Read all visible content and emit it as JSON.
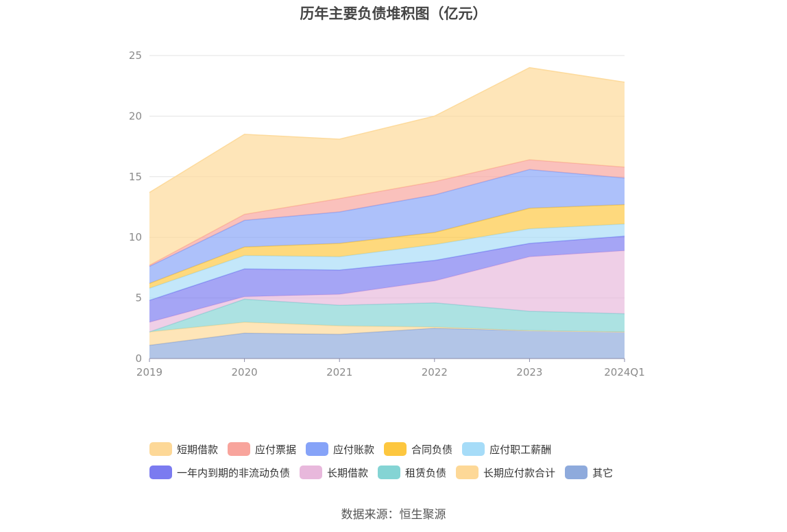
{
  "title": "历年主要负债堆积图（亿元）",
  "source": "数据来源：恒生聚源",
  "chart_data": {
    "type": "area",
    "stacked": true,
    "title": "历年主要负债堆积图（亿元）",
    "x": [
      "2019",
      "2020",
      "2021",
      "2022",
      "2023",
      "2024Q1"
    ],
    "ylim": [
      0,
      25
    ],
    "yticks": [
      0,
      5,
      10,
      15,
      20,
      25
    ],
    "grid": true,
    "legend_position": "bottom",
    "series": [
      {
        "name": "其它",
        "color": "#8eaadc",
        "values": [
          1.1,
          2.1,
          2.0,
          2.5,
          2.3,
          2.2
        ]
      },
      {
        "name": "长期应付款合计",
        "color": "#fdd897",
        "values": [
          1.1,
          0.9,
          0.7,
          0.1,
          0.0,
          0.0
        ]
      },
      {
        "name": "租赁负债",
        "color": "#84d4d4",
        "values": [
          0.0,
          1.9,
          1.7,
          2.0,
          1.6,
          1.5
        ]
      },
      {
        "name": "长期借款",
        "color": "#e8b8dc",
        "values": [
          0.8,
          0.2,
          0.9,
          1.8,
          4.5,
          5.2
        ]
      },
      {
        "name": "一年内到期的非流动负债",
        "color": "#7b7bf0",
        "values": [
          1.8,
          2.3,
          2.0,
          1.7,
          1.1,
          1.2
        ]
      },
      {
        "name": "应付职工薪酬",
        "color": "#a6dcf8",
        "values": [
          1.0,
          1.1,
          1.1,
          1.3,
          1.2,
          1.0
        ]
      },
      {
        "name": "合同负债",
        "color": "#fdc73f",
        "values": [
          0.4,
          0.7,
          1.1,
          1.0,
          1.7,
          1.6
        ]
      },
      {
        "name": "应付账款",
        "color": "#86a3f8",
        "values": [
          1.4,
          2.2,
          2.6,
          3.1,
          3.2,
          2.2
        ]
      },
      {
        "name": "应付票据",
        "color": "#f8a49c",
        "values": [
          0.1,
          0.5,
          1.1,
          1.1,
          0.8,
          0.9
        ]
      },
      {
        "name": "短期借款",
        "color": "#fdd897",
        "values": [
          6.0,
          6.6,
          4.9,
          5.4,
          7.6,
          7.0
        ]
      }
    ],
    "legend_order": [
      "短期借款",
      "应付票据",
      "应付账款",
      "合同负债",
      "应付职工薪酬",
      "一年内到期的非流动负债",
      "长期借款",
      "租赁负债",
      "长期应付款合计",
      "其它"
    ]
  }
}
